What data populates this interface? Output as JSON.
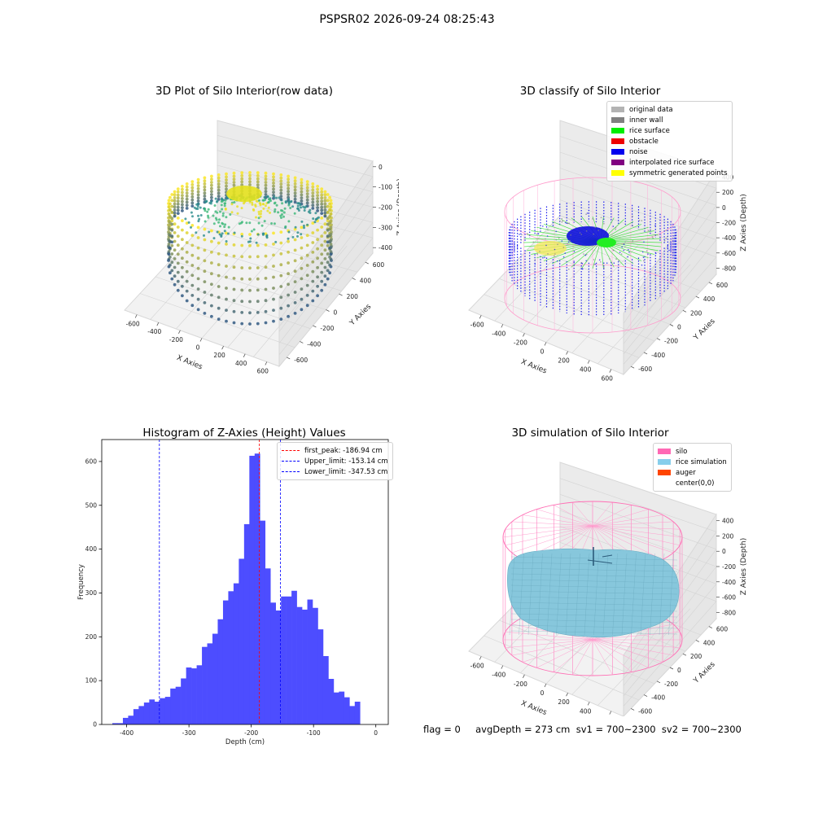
{
  "suptitle": "PSPSR02 2026-09-24 08:25:43",
  "panels": {
    "raw": {
      "title": "3D Plot of Silo Interior(row data)",
      "xlabel": "X Axies",
      "ylabel": "Y Axies",
      "zlabel": "Z Axies (Depth)",
      "xticks": [
        "-600",
        "-400",
        "-200",
        "0",
        "200",
        "400",
        "600"
      ],
      "yticks": [
        "-600",
        "-400",
        "-200",
        "0",
        "200",
        "400",
        "600"
      ],
      "zticks": [
        "0",
        "-100",
        "-200",
        "-300",
        "-400"
      ]
    },
    "classify": {
      "title": "3D classify of Silo Interior",
      "xlabel": "X Axies",
      "ylabel": "Y Axies",
      "zlabel": "Z Axies (Depth)",
      "xticks": [
        "-600",
        "-400",
        "-200",
        "0",
        "200",
        "400",
        "600"
      ],
      "yticks": [
        "-600",
        "-400",
        "-200",
        "0",
        "200",
        "400",
        "600"
      ],
      "zticks": [
        "400",
        "200",
        "0",
        "-200",
        "-400",
        "-600",
        "-800"
      ],
      "legend": [
        {
          "label": "original data",
          "color": "#b3b3b3"
        },
        {
          "label": "inner wall",
          "color": "#808080"
        },
        {
          "label": "rice surface",
          "color": "#00ee00"
        },
        {
          "label": "obstacle",
          "color": "#ee0000"
        },
        {
          "label": "noise",
          "color": "#0000ee"
        },
        {
          "label": "interpolated rice surface",
          "color": "#800080"
        },
        {
          "label": "symmetric generated points",
          "color": "#ffff00"
        }
      ]
    },
    "simulation": {
      "title": "3D simulation of Silo Interior",
      "xlabel": "X Axies",
      "ylabel": "Y Axies",
      "zlabel": "Z Axies (Depth)",
      "xticks": [
        "-600",
        "-400",
        "-200",
        "0",
        "200",
        "400",
        "600"
      ],
      "yticks": [
        "-600",
        "-400",
        "-200",
        "0",
        "200",
        "400",
        "600"
      ],
      "zticks": [
        "400",
        "200",
        "0",
        "-200",
        "-400",
        "-600",
        "-800"
      ],
      "legend": [
        {
          "label": "silo",
          "color": "#ff69b4"
        },
        {
          "label": "rice simulation",
          "color": "#87ceeb"
        },
        {
          "label": "auger",
          "color": "#ff4500"
        },
        {
          "label": "center(0,0)",
          "color": "#ffffff"
        }
      ]
    }
  },
  "footer": {
    "text": "flag = 0     avgDepth = 273 cm  sv1 = 700~2300  sv2 = 700~2300"
  },
  "chart_data": {
    "type": "bar",
    "title": "Histogram of Z-Axies (Height) Values",
    "xlabel": "Depth (cm)",
    "ylabel": "Frequency",
    "bar_color": "#4d4dff",
    "xlim": [
      -440,
      20
    ],
    "ylim": [
      0,
      650
    ],
    "xticks": [
      -400,
      -300,
      -200,
      -100,
      0
    ],
    "yticks": [
      0,
      100,
      200,
      300,
      400,
      500,
      600
    ],
    "bin_start": -423,
    "bin_width": 8.46,
    "values": [
      3,
      3,
      15,
      20,
      35,
      42,
      50,
      57,
      52,
      60,
      63,
      82,
      86,
      105,
      130,
      128,
      135,
      177,
      185,
      207,
      240,
      283,
      304,
      322,
      378,
      457,
      613,
      618,
      465,
      356,
      278,
      260,
      292,
      292,
      305,
      268,
      262,
      285,
      266,
      217,
      156,
      104,
      73,
      75,
      62,
      42,
      52
    ],
    "legend_position": "top-right",
    "legend": [
      {
        "label": "first_peak: -186.94 cm",
        "value": -186.94,
        "color": "#ff0000"
      },
      {
        "label": "Upper_limit: -153.14 cm",
        "value": -153.14,
        "color": "#0000ff"
      },
      {
        "label": "Lower_limit: -347.53 cm",
        "value": -347.53,
        "color": "#0000ff"
      }
    ]
  }
}
